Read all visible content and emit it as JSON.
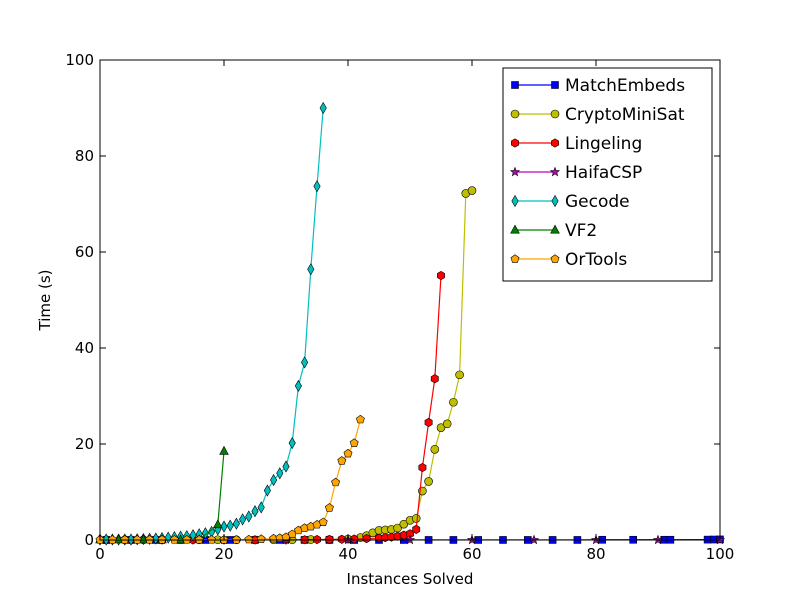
{
  "chart_data": {
    "type": "line",
    "title": "",
    "xlabel": "Instances Solved",
    "ylabel": "Time (s)",
    "xlim": [
      0,
      100
    ],
    "ylim": [
      0,
      100
    ],
    "xticks": [
      0,
      20,
      40,
      60,
      80,
      100
    ],
    "yticks": [
      0,
      20,
      40,
      60,
      80,
      100
    ],
    "grid": false,
    "legend_position": "top-right",
    "series": [
      {
        "name": "MatchEmbeds",
        "color": "#0000ff",
        "marker": "square",
        "x": [
          1,
          5,
          9,
          13,
          17,
          21,
          25,
          29,
          33,
          37,
          41,
          45,
          49,
          53,
          57,
          61,
          65,
          69,
          73,
          77,
          81,
          86,
          91,
          92,
          98,
          99,
          100
        ],
        "y": [
          0.01,
          0.01,
          0.01,
          0.01,
          0.01,
          0.01,
          0.01,
          0.01,
          0.01,
          0.01,
          0.01,
          0.01,
          0.01,
          0.01,
          0.01,
          0.01,
          0.01,
          0.01,
          0.01,
          0.01,
          0.05,
          0.05,
          0.05,
          0.05,
          0.08,
          0.1,
          0.12
        ]
      },
      {
        "name": "CryptoMiniSat",
        "color": "#bfbf00",
        "marker": "circle",
        "x": [
          1,
          4,
          7,
          10,
          13,
          16,
          19,
          22,
          25,
          28,
          31,
          34,
          37,
          40,
          42,
          43,
          44,
          45,
          46,
          47,
          48,
          49,
          50,
          51,
          52,
          53,
          54,
          55,
          56,
          57,
          58,
          59,
          60
        ],
        "y": [
          0.05,
          0.05,
          0.05,
          0.05,
          0.05,
          0.05,
          0.05,
          0.05,
          0.05,
          0.05,
          0.05,
          0.1,
          0.1,
          0.2,
          0.5,
          0.9,
          1.5,
          2.0,
          2.1,
          2.2,
          2.5,
          3.3,
          4.1,
          4.5,
          10.2,
          12.2,
          18.9,
          23.4,
          24.2,
          28.7,
          34.4,
          72.2,
          72.8
        ]
      },
      {
        "name": "Lingeling",
        "color": "#ff0000",
        "marker": "hexagon",
        "x": [
          1,
          5,
          10,
          15,
          20,
          25,
          30,
          33,
          35,
          37,
          39,
          41,
          43,
          45,
          46,
          47,
          48,
          49,
          50,
          51,
          52,
          53,
          54,
          55
        ],
        "y": [
          0.01,
          0.01,
          0.01,
          0.01,
          0.01,
          0.01,
          0.01,
          0.05,
          0.1,
          0.1,
          0.15,
          0.2,
          0.3,
          0.4,
          0.5,
          0.6,
          0.8,
          1.0,
          1.3,
          2.2,
          15.1,
          24.5,
          33.6,
          55.1
        ]
      },
      {
        "name": "HaifaCSP",
        "color": "#bf00bf",
        "marker": "star",
        "x": [
          1,
          10,
          20,
          30,
          40,
          50,
          60,
          70,
          80,
          90,
          100
        ],
        "y": [
          0.01,
          0.01,
          0.01,
          0.01,
          0.01,
          0.01,
          0.01,
          0.01,
          0.01,
          0.01,
          0.01
        ]
      },
      {
        "name": "Gecode",
        "color": "#00bfbf",
        "marker": "thin_diamond",
        "x": [
          0,
          1,
          2,
          3,
          4,
          5,
          6,
          7,
          8,
          9,
          10,
          11,
          12,
          13,
          14,
          15,
          16,
          17,
          18,
          19,
          20,
          21,
          22,
          23,
          24,
          25,
          26,
          27,
          28,
          29,
          30,
          31,
          32,
          33,
          34,
          35,
          36
        ],
        "y": [
          0.1,
          0.1,
          0.1,
          0.1,
          0.1,
          0.1,
          0.15,
          0.2,
          0.25,
          0.3,
          0.4,
          0.5,
          0.6,
          0.7,
          0.8,
          1.0,
          1.2,
          1.4,
          1.7,
          2.2,
          2.8,
          3.0,
          3.4,
          4.3,
          4.9,
          6.0,
          6.8,
          10.3,
          12.5,
          13.9,
          15.3,
          20.2,
          32.1,
          37.0,
          56.4,
          73.7,
          90.0
        ]
      },
      {
        "name": "VF2",
        "color": "#008000",
        "marker": "triangle",
        "x": [
          0,
          3,
          7,
          10,
          13,
          16,
          19,
          20
        ],
        "y": [
          0.05,
          0.05,
          0.05,
          0.05,
          0.05,
          0.1,
          3.2,
          18.5
        ]
      },
      {
        "name": "OrTools",
        "color": "#ffa500",
        "marker": "pentagon",
        "x": [
          0,
          2,
          4,
          6,
          8,
          10,
          12,
          14,
          16,
          18,
          20,
          22,
          24,
          26,
          28,
          29,
          30,
          31,
          32,
          33,
          34,
          35,
          36,
          37,
          38,
          39,
          40,
          41,
          42
        ],
        "y": [
          0.05,
          0.05,
          0.05,
          0.05,
          0.05,
          0.05,
          0.05,
          0.05,
          0.05,
          0.05,
          0.05,
          0.05,
          0.1,
          0.2,
          0.3,
          0.4,
          0.6,
          1.2,
          2.0,
          2.5,
          2.8,
          3.2,
          3.7,
          6.7,
          12.0,
          16.5,
          18.0,
          20.2,
          25.1
        ]
      }
    ]
  }
}
